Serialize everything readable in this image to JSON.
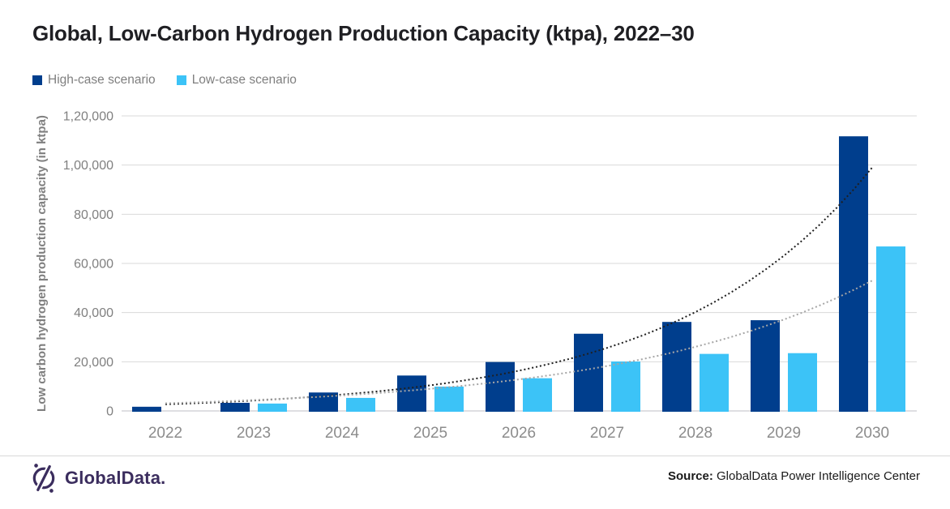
{
  "title": "Global, Low-Carbon Hydrogen Production Capacity (ktpa), 2022–30",
  "legend": [
    {
      "label": "High-case scenario",
      "color": "#003e8d"
    },
    {
      "label": "Low-case scenario",
      "color": "#3cc3f7"
    }
  ],
  "footer": {
    "logo_text": "GlobalData.",
    "logo_color": "#3b2d5e",
    "source_label": "Source:",
    "source_text": "GlobalData Power Intelligence Center"
  },
  "chart_data": {
    "type": "bar",
    "title": "Global, Low-Carbon Hydrogen Production Capacity (ktpa), 2022–30",
    "categories": [
      "2022",
      "2023",
      "2024",
      "2025",
      "2026",
      "2027",
      "2028",
      "2029",
      "2030"
    ],
    "series": [
      {
        "name": "High-case scenario",
        "color": "#003e8d",
        "values": [
          1700,
          3300,
          7500,
          14400,
          19900,
          31400,
          36200,
          36900,
          111700
        ]
      },
      {
        "name": "Low-case scenario",
        "color": "#3cc3f7",
        "values": [
          0,
          3000,
          5300,
          9900,
          13300,
          20100,
          23200,
          23500,
          66900
        ]
      }
    ],
    "trendlines": [
      {
        "name": "High-case trend",
        "type": "exponential",
        "color": "#1f1f1f",
        "start": 2700,
        "end": 99000
      },
      {
        "name": "Low-case trend",
        "type": "exponential",
        "color": "#a6a6a6",
        "start": 3100,
        "end": 53000
      }
    ],
    "xlabel": "",
    "ylabel": "Low carbon hydrogen production capacity (in ktpa)",
    "ylim": [
      0,
      120000
    ],
    "y_ticks": [
      "0",
      "20,000",
      "40,000",
      "60,000",
      "80,000",
      "1,00,000",
      "1,20,000"
    ],
    "grid": true,
    "legend_position": "top-left"
  }
}
